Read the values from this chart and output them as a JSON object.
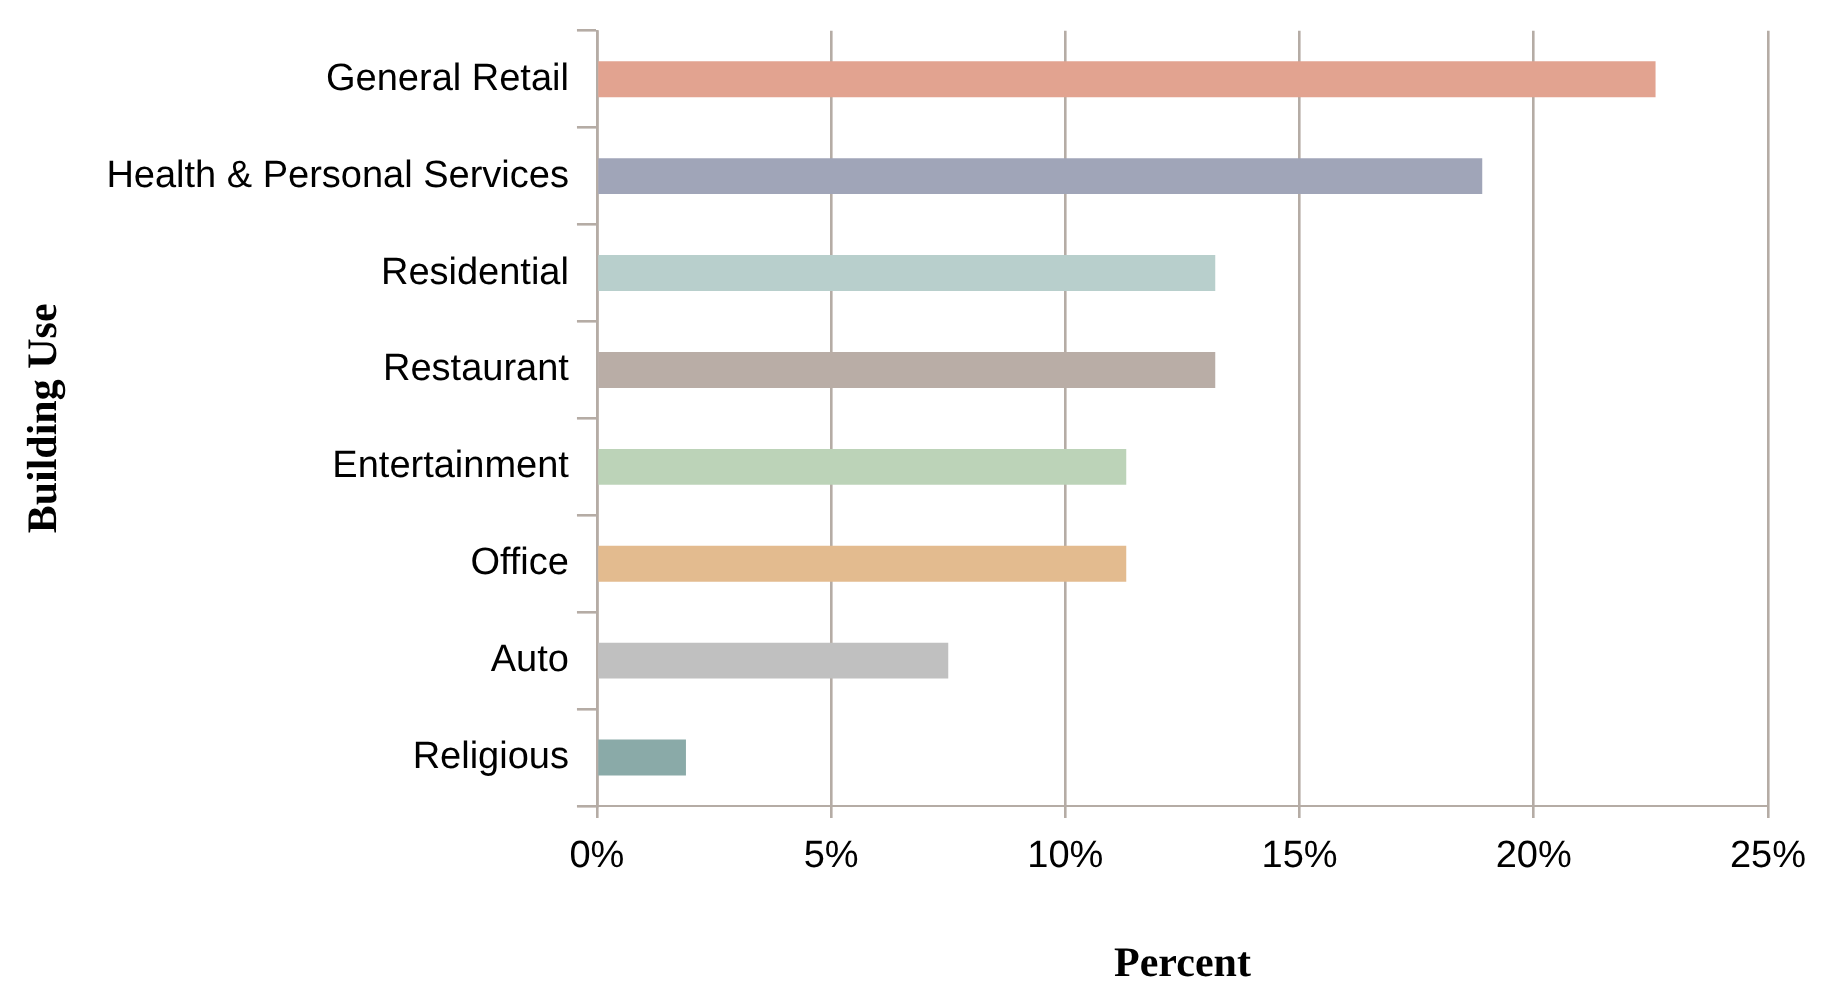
{
  "chart_data": {
    "type": "bar",
    "orientation": "horizontal",
    "xlabel": "Percent",
    "ylabel": "Building Use",
    "categories": [
      "General Retail",
      "Health & Personal Services",
      "Residential",
      "Restaurant",
      "Entertainment",
      "Office",
      "Auto",
      "Religious"
    ],
    "values": [
      22.6,
      18.9,
      13.2,
      13.2,
      11.3,
      11.3,
      7.5,
      1.9
    ],
    "colors": [
      "#e2a390",
      "#a0a5b8",
      "#b8cfcc",
      "#b9ada6",
      "#bcd3b8",
      "#e3bb8f",
      "#c0c0c0",
      "#8aaaa8"
    ],
    "xlim": [
      0,
      25
    ],
    "xticks": [
      {
        "value": 0,
        "label": "0%"
      },
      {
        "value": 5,
        "label": "5%"
      },
      {
        "value": 10,
        "label": "10%"
      },
      {
        "value": 15,
        "label": "15%"
      },
      {
        "value": 20,
        "label": "20%"
      },
      {
        "value": 25,
        "label": "25%"
      }
    ],
    "grid": "x",
    "legend": false
  }
}
